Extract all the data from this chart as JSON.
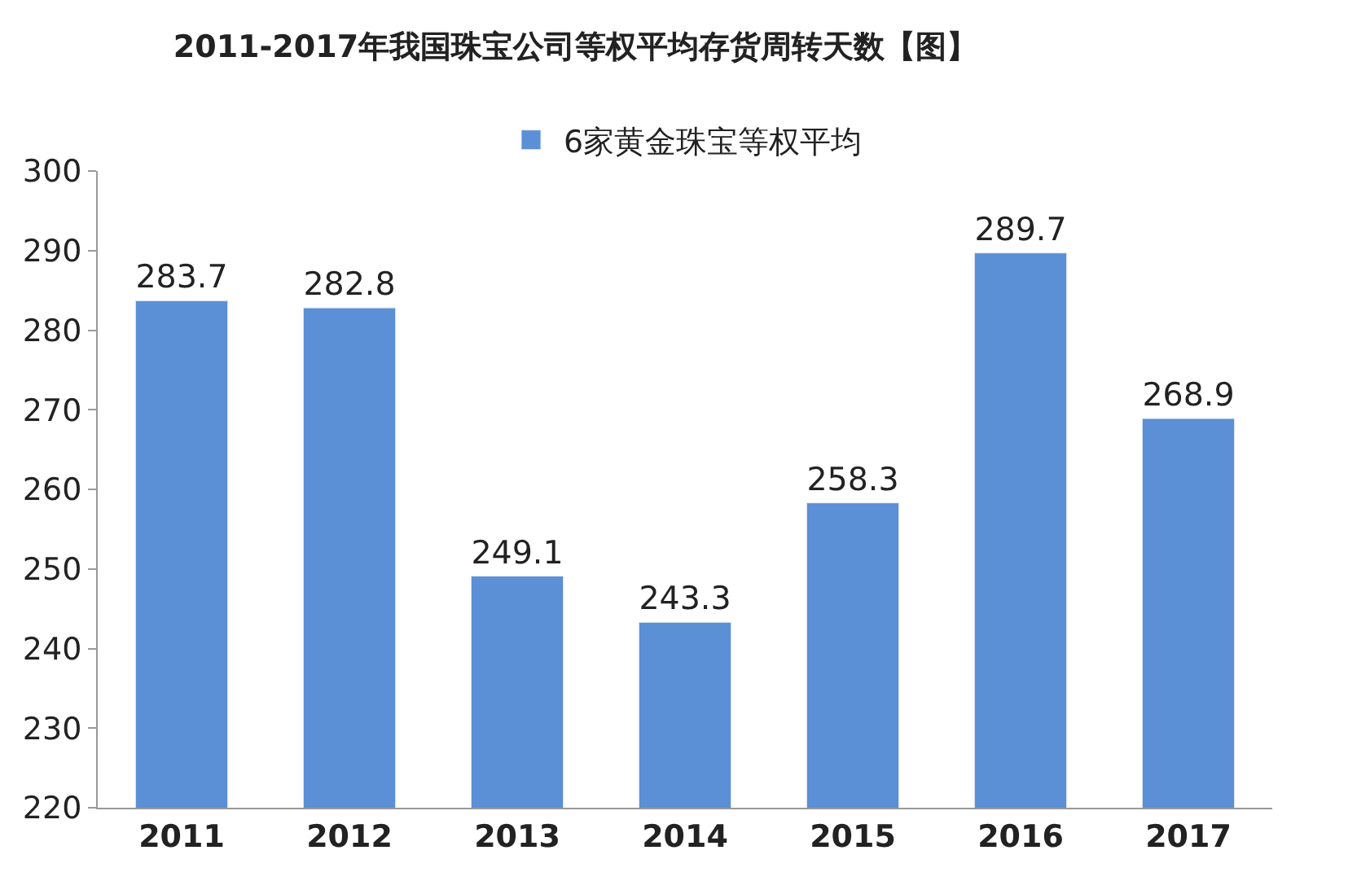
{
  "chart_data": {
    "type": "bar",
    "title": "2011-2017年我国珠宝公司等权平均存货周转天数【图】",
    "categories": [
      "2011",
      "2012",
      "2013",
      "2014",
      "2015",
      "2016",
      "2017"
    ],
    "series": [
      {
        "name": "6家黄金珠宝等权平均",
        "color": "#5b8fd6",
        "values": [
          283.7,
          282.8,
          249.1,
          243.3,
          258.3,
          289.7,
          268.9
        ]
      }
    ],
    "ylim": [
      220,
      300
    ],
    "yticks": [
      220,
      230,
      240,
      250,
      260,
      270,
      280,
      290,
      300
    ],
    "data_labels": true,
    "legend": "top"
  }
}
